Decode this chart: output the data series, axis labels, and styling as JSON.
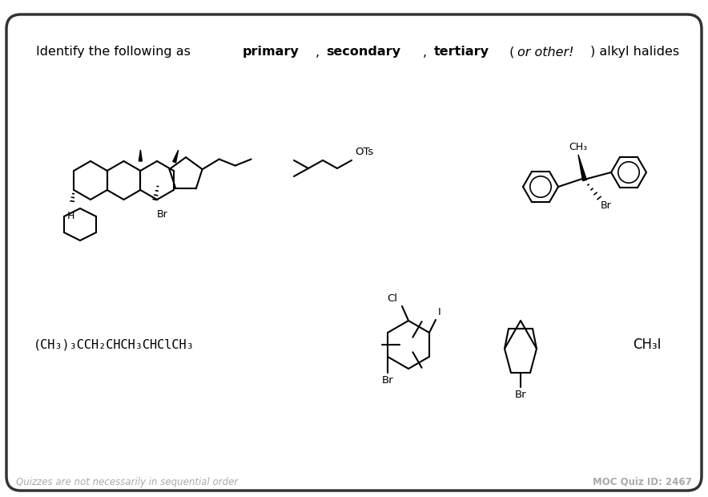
{
  "bg_color": "#ffffff",
  "border_color": "#333333",
  "title_text_parts": [
    {
      "text": "Identify the following as ",
      "bold": false,
      "italic": false
    },
    {
      "text": "primary",
      "bold": true,
      "italic": false
    },
    {
      "text": ", ",
      "bold": false,
      "italic": false
    },
    {
      "text": "secondary",
      "bold": true,
      "italic": false
    },
    {
      "text": ", ",
      "bold": false,
      "italic": false
    },
    {
      "text": "tertiary",
      "bold": true,
      "italic": false
    },
    {
      "text": " (",
      "bold": false,
      "italic": false
    },
    {
      "text": "or other!",
      "bold": false,
      "italic": true
    },
    {
      "text": ") alkyl halides",
      "bold": false,
      "italic": false
    }
  ],
  "footer_left": "Quizzes are not necessarily in sequential order",
  "footer_right": "MOC Quiz ID: 2467",
  "footer_color": "#aaaaaa",
  "linear_formula": "(CH₃)₃CCH₂CHCH₃CHClCH₃",
  "ch3i_label": "CH₃I",
  "ots_label": "OTs",
  "br_label": "Br",
  "cl_label": "Cl",
  "i_label": "I",
  "ch3_label": "CH₃"
}
